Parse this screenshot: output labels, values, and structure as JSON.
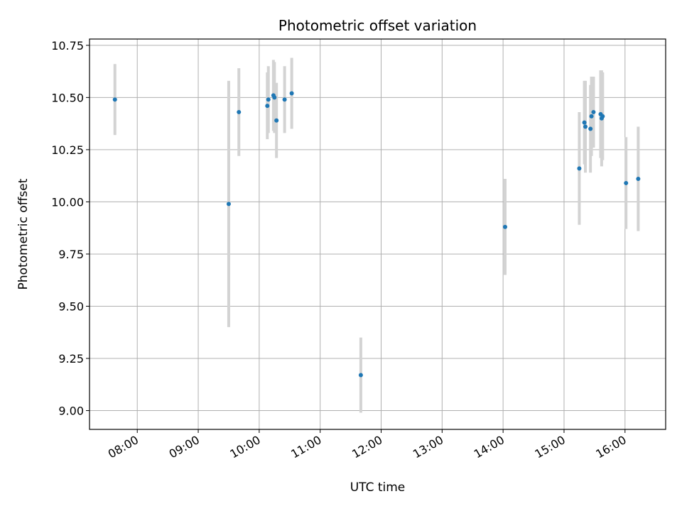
{
  "chart_data": {
    "type": "scatter",
    "title": "Photometric offset variation",
    "xlabel": "UTC time",
    "ylabel": "Photometric offset",
    "xlim": [
      "07:13",
      "16:40"
    ],
    "ylim": [
      8.91,
      10.78
    ],
    "x_ticks": [
      "08:00",
      "09:00",
      "10:00",
      "11:00",
      "12:00",
      "13:00",
      "14:00",
      "15:00",
      "16:00"
    ],
    "y_ticks": [
      "9.00",
      "9.25",
      "9.50",
      "9.75",
      "10.00",
      "10.25",
      "10.50",
      "10.75"
    ],
    "y_tick_values": [
      9.0,
      9.25,
      9.5,
      9.75,
      10.0,
      10.25,
      10.5,
      10.75
    ],
    "grid": true,
    "colors": {
      "point": "#1f77b4",
      "errorbar": "#d3d3d3",
      "grid": "#b0b0b0"
    },
    "points": [
      {
        "x": "07:38",
        "y": 10.49,
        "err": 0.17
      },
      {
        "x": "09:30",
        "y": 9.99,
        "err": 0.59
      },
      {
        "x": "09:40",
        "y": 10.43,
        "err": 0.21
      },
      {
        "x": "10:08",
        "y": 10.46,
        "err": 0.16
      },
      {
        "x": "10:09",
        "y": 10.49,
        "err": 0.16
      },
      {
        "x": "10:14",
        "y": 10.51,
        "err": 0.17
      },
      {
        "x": "10:15",
        "y": 10.5,
        "err": 0.17
      },
      {
        "x": "10:17",
        "y": 10.39,
        "err": 0.18
      },
      {
        "x": "10:25",
        "y": 10.49,
        "err": 0.16
      },
      {
        "x": "10:32",
        "y": 10.52,
        "err": 0.17
      },
      {
        "x": "11:40",
        "y": 9.17,
        "err": 0.18
      },
      {
        "x": "14:02",
        "y": 9.88,
        "err": 0.23
      },
      {
        "x": "15:15",
        "y": 10.16,
        "err": 0.27
      },
      {
        "x": "15:20",
        "y": 10.38,
        "err": 0.2
      },
      {
        "x": "15:21",
        "y": 10.36,
        "err": 0.22
      },
      {
        "x": "15:26",
        "y": 10.35,
        "err": 0.21
      },
      {
        "x": "15:27",
        "y": 10.41,
        "err": 0.19
      },
      {
        "x": "15:29",
        "y": 10.43,
        "err": 0.17
      },
      {
        "x": "15:36",
        "y": 10.42,
        "err": 0.21
      },
      {
        "x": "15:37",
        "y": 10.4,
        "err": 0.23
      },
      {
        "x": "15:38",
        "y": 10.41,
        "err": 0.21
      },
      {
        "x": "16:01",
        "y": 10.09,
        "err": 0.22
      },
      {
        "x": "16:13",
        "y": 10.11,
        "err": 0.25
      }
    ]
  }
}
